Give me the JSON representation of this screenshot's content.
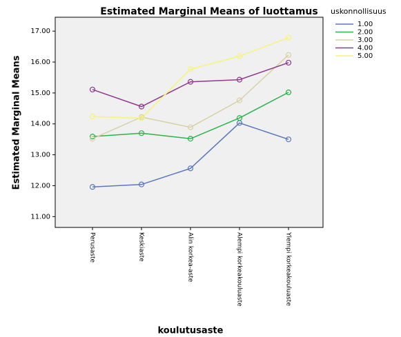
{
  "chart_data": {
    "type": "line",
    "title": "Estimated Marginal Means of luottamus",
    "x_label": "koulutusaste",
    "y_label": "Estimated Marginal Means",
    "legend_title": "uskonnollisuus",
    "categories": [
      "Perusaste",
      "Keskiaste",
      "Alin korkea-aste",
      "Alempi korkeakouluaste",
      "Ylempi korkeakouluaste"
    ],
    "series": [
      {
        "name": "1.00",
        "color": "#5a76c0",
        "values": [
          11.96,
          12.04,
          12.56,
          14.03,
          13.5
        ]
      },
      {
        "name": "2.00",
        "color": "#2ab34a",
        "values": [
          13.59,
          13.7,
          13.52,
          14.19,
          15.02
        ]
      },
      {
        "name": "3.00",
        "color": "#d6d2a4",
        "values": [
          13.52,
          14.22,
          13.89,
          14.76,
          16.23
        ]
      },
      {
        "name": "4.00",
        "color": "#8e3a8c",
        "values": [
          15.11,
          14.56,
          15.36,
          15.43,
          15.98
        ]
      },
      {
        "name": "5.00",
        "color": "#f5f57a",
        "values": [
          14.24,
          14.18,
          15.77,
          16.19,
          16.79
        ]
      }
    ],
    "ylim": [
      10.65,
      17.45
    ],
    "yticks": [
      {
        "value": 11,
        "label": "11.00"
      },
      {
        "value": 12,
        "label": "12.00"
      },
      {
        "value": 13,
        "label": "13.00"
      },
      {
        "value": 14,
        "label": "14.00"
      },
      {
        "value": 15,
        "label": "15.00"
      },
      {
        "value": 16,
        "label": "16.00"
      },
      {
        "value": 17,
        "label": "17.00"
      }
    ],
    "legend_position": "right"
  }
}
